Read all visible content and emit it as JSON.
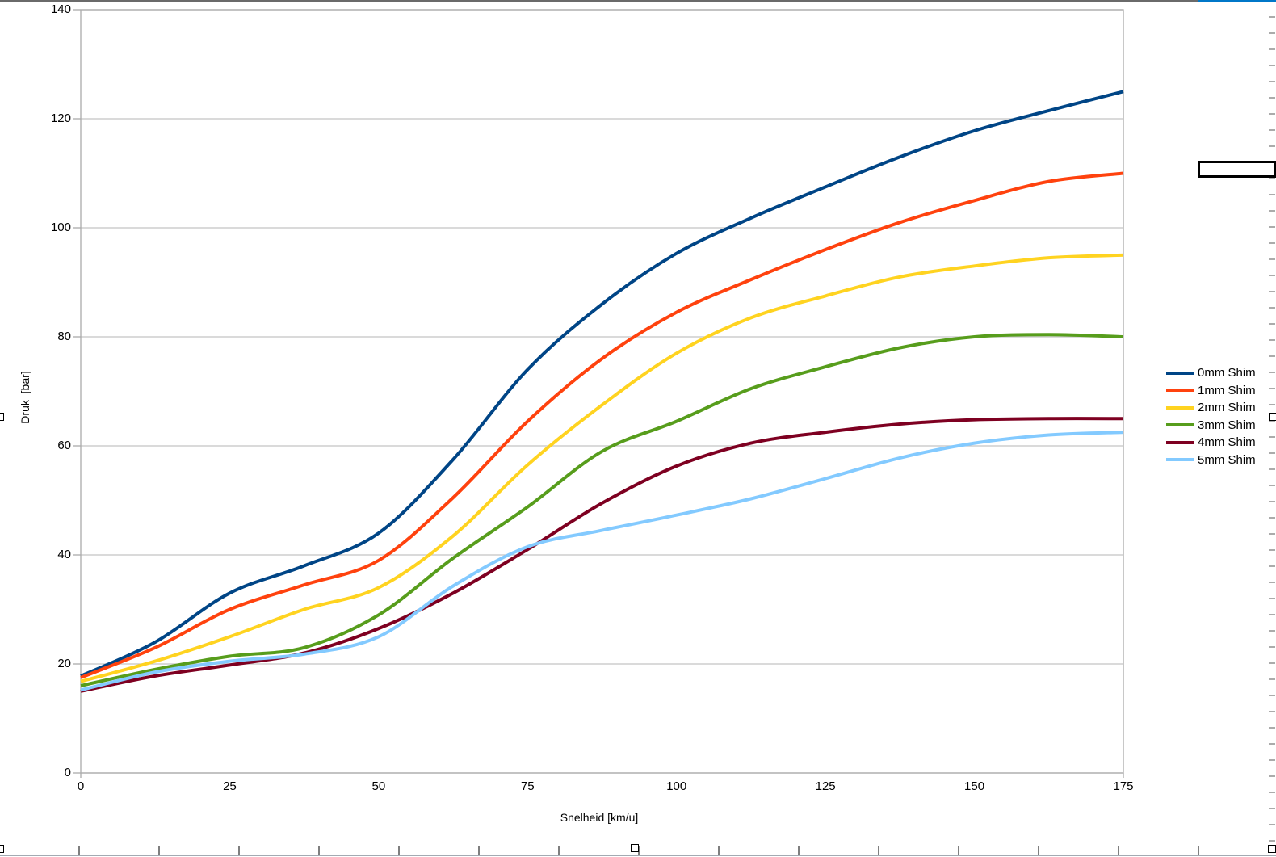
{
  "ui": {
    "top_edge_gray_color": "#6A6A6A",
    "top_edge_blue_color": "#0077C8",
    "sheet_grid_color": "#ABABAB",
    "plot_border_color": "#ABABAB",
    "gridline_color": "#C3C3C3"
  },
  "chart_data": {
    "type": "line",
    "title": "",
    "xlabel": "Snelheid [km/u]",
    "ylabel": "Druk  [bar]",
    "xlim": [
      0,
      175
    ],
    "xstep": 25,
    "ylim": [
      0,
      140
    ],
    "ystep": 20,
    "grid": true,
    "legend_position": "right",
    "x": [
      0,
      12.5,
      25,
      37.5,
      50,
      62.5,
      75,
      87.5,
      100,
      112.5,
      125,
      137.5,
      150,
      162.5,
      175
    ],
    "series": [
      {
        "name": "0mm Shim",
        "color": "#004586",
        "values": [
          17.8,
          24,
          33,
          38,
          44,
          57.5,
          74,
          86,
          95.3,
          101.8,
          107.5,
          113,
          117.8,
          121.5,
          125
        ]
      },
      {
        "name": "1mm Shim",
        "color": "#FF420E",
        "values": [
          17.5,
          23,
          30,
          34.5,
          39,
          50.5,
          64.5,
          76,
          84.5,
          90.5,
          96,
          101,
          105,
          108.5,
          110
        ]
      },
      {
        "name": "2mm Shim",
        "color": "#FFD320",
        "values": [
          16.8,
          20.5,
          25,
          30,
          34,
          43.5,
          56.5,
          67.5,
          77,
          83.5,
          87.5,
          91,
          93,
          94.5,
          95
        ]
      },
      {
        "name": "3mm Shim",
        "color": "#579D1C",
        "values": [
          16,
          19,
          21.4,
          23,
          29,
          39.4,
          48.8,
          59,
          64.5,
          70.5,
          74.5,
          78,
          80,
          80.4,
          80
        ]
      },
      {
        "name": "4mm Shim",
        "color": "#7E0021",
        "values": [
          15,
          17.8,
          19.8,
          22,
          26.5,
          33,
          41,
          49.5,
          56.3,
          60.5,
          62.5,
          64,
          64.8,
          65,
          65
        ]
      },
      {
        "name": "5mm Shim",
        "color": "#83CAFF",
        "values": [
          15.2,
          18.5,
          20.5,
          21.8,
          25,
          34.3,
          41.5,
          44.5,
          47.3,
          50.3,
          54,
          57.8,
          60.5,
          62,
          62.5
        ]
      }
    ]
  }
}
